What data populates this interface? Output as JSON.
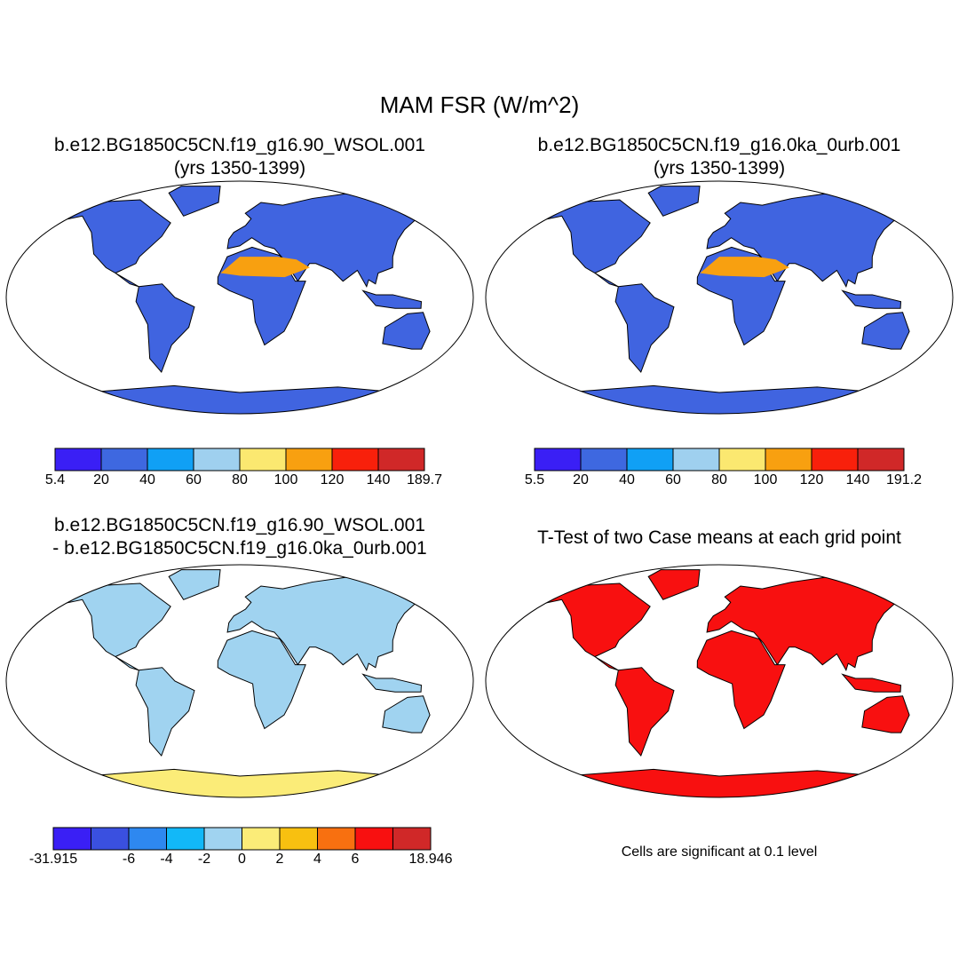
{
  "title": "MAM FSR (W/m^2)",
  "panels": [
    {
      "title": [
        "b.e12.BG1850C5CN.f19_g16.90_WSOL.001",
        "(yrs 1350-1399)"
      ],
      "colorbar": {
        "colors": [
          "#3a1ff5",
          "#3e68e0",
          "#10a0f5",
          "#9fd0ef",
          "#fbe870",
          "#f8a010",
          "#f8200b",
          "#d02828"
        ],
        "labels": [
          5.4,
          20,
          40,
          60,
          80,
          100,
          120,
          140,
          189.7
        ]
      }
    },
    {
      "title": [
        "b.e12.BG1850C5CN.f19_g16.0ka_0urb.001",
        "(yrs 1350-1399)"
      ],
      "colorbar": {
        "colors": [
          "#3a1ff5",
          "#3e68e0",
          "#10a0f5",
          "#9fd0ef",
          "#fbe870",
          "#f8a010",
          "#f8200b",
          "#d02828"
        ],
        "labels": [
          5.5,
          20,
          40,
          60,
          80,
          100,
          120,
          140,
          191.2
        ]
      }
    },
    {
      "title": [
        "b.e12.BG1850C5CN.f19_g16.90_WSOL.001",
        "- b.e12.BG1850C5CN.f19_g16.0ka_0urb.001"
      ],
      "colorbar": {
        "colors": [
          "#3a1ff5",
          "#3a50e0",
          "#2e88f0",
          "#12b8f8",
          "#a0d3f0",
          "#fbec78",
          "#f8c010",
          "#f87010",
          "#f81010",
          "#d02828"
        ],
        "labels": [
          -31.915,
          null,
          -6,
          -4,
          -2,
          0,
          2,
          4,
          6,
          null,
          18.946
        ]
      }
    },
    {
      "title": [
        "T-Test of two Case means at each grid point"
      ],
      "note": "Cells are significant at 0.1 level"
    }
  ]
}
